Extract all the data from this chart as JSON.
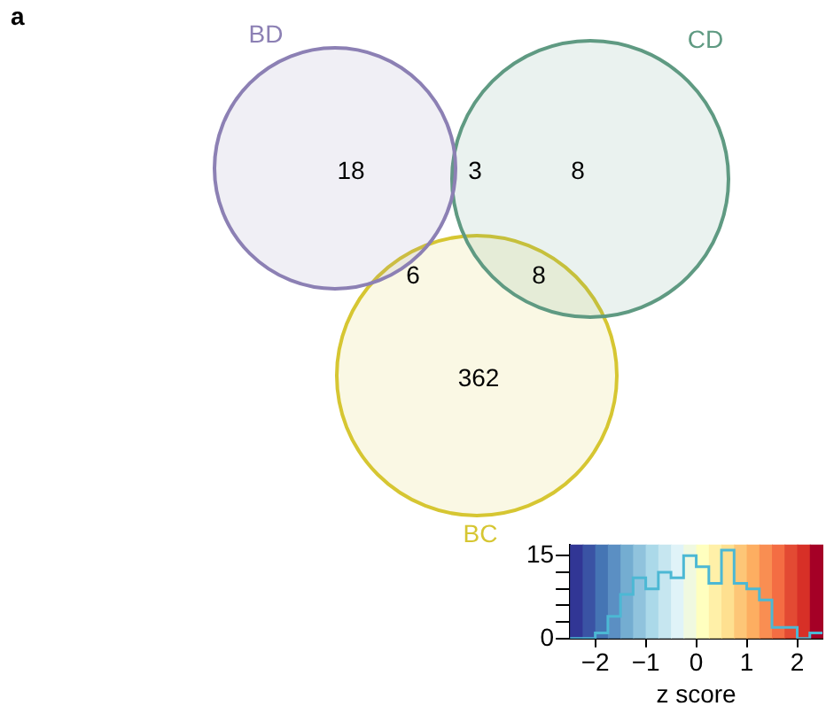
{
  "chart_data": [
    {
      "type": "other",
      "title": "a",
      "series": [
        {
          "name": "BD",
          "color": "#8c80b4"
        },
        {
          "name": "CD",
          "color": "#5f9a82"
        },
        {
          "name": "BC",
          "color": "#d6c632"
        }
      ],
      "annotations": [
        "18",
        "3",
        "8",
        "6",
        "8",
        "362"
      ]
    },
    {
      "type": "histogram",
      "xlabel": "z score",
      "bins": [
        -2.5,
        -2.25,
        -2,
        -1.75,
        -1.5,
        -1.25,
        -1,
        -0.75,
        -0.5,
        -0.25,
        0,
        0.25,
        0.5,
        0.75,
        1,
        1.25,
        1.5,
        1.75,
        2,
        2.25,
        2.5
      ],
      "values": [
        0,
        0,
        1,
        4,
        8,
        11,
        9,
        12,
        11,
        15,
        13,
        10,
        16,
        10,
        9,
        7,
        2,
        2,
        0,
        1
      ],
      "color": "#4cb8d4",
      "xlim": [
        -2.5,
        2.5
      ],
      "xticks": [
        {
          "value": -2,
          "label": "−2"
        },
        {
          "value": -1,
          "label": "−1"
        },
        0,
        1,
        2
      ],
      "ylim": [
        0,
        17
      ],
      "yticks": [
        0,
        {
          "value": 3,
          "label": null
        },
        {
          "value": 6,
          "label": null
        },
        {
          "value": 9,
          "label": null
        },
        {
          "value": 12,
          "label": null
        },
        15
      ],
      "grid": false,
      "bands": [
        {
          "axis": "x",
          "from": -2.5,
          "to": -2.25,
          "color": "#313695"
        },
        {
          "axis": "x",
          "from": -2.25,
          "to": -2,
          "color": "#3a53a4"
        },
        {
          "axis": "x",
          "from": -2,
          "to": -1.75,
          "color": "#4575b4"
        },
        {
          "axis": "x",
          "from": -1.75,
          "to": -1.5,
          "color": "#5b8fc3"
        },
        {
          "axis": "x",
          "from": -1.5,
          "to": -1.25,
          "color": "#74add1"
        },
        {
          "axis": "x",
          "from": -1.25,
          "to": -1,
          "color": "#90c3dd"
        },
        {
          "axis": "x",
          "from": -1,
          "to": -0.75,
          "color": "#abd9e9"
        },
        {
          "axis": "x",
          "from": -0.75,
          "to": -0.5,
          "color": "#c6e6f0"
        },
        {
          "axis": "x",
          "from": -0.5,
          "to": -0.25,
          "color": "#e0f3f8"
        },
        {
          "axis": "x",
          "from": -0.25,
          "to": 0,
          "color": "#f0f9e0"
        },
        {
          "axis": "x",
          "from": 0,
          "to": 0.25,
          "color": "#ffffbf"
        },
        {
          "axis": "x",
          "from": 0.25,
          "to": 0.5,
          "color": "#fff0a8"
        },
        {
          "axis": "x",
          "from": 0.5,
          "to": 0.75,
          "color": "#fee090"
        },
        {
          "axis": "x",
          "from": 0.75,
          "to": 1,
          "color": "#fdc677"
        },
        {
          "axis": "x",
          "from": 1,
          "to": 1.25,
          "color": "#fdae61"
        },
        {
          "axis": "x",
          "from": 1.25,
          "to": 1.5,
          "color": "#f98e52"
        },
        {
          "axis": "x",
          "from": 1.5,
          "to": 1.75,
          "color": "#f46d43"
        },
        {
          "axis": "x",
          "from": 1.75,
          "to": 2,
          "color": "#e34a33"
        },
        {
          "axis": "x",
          "from": 2,
          "to": 2.25,
          "color": "#d73027"
        },
        {
          "axis": "x",
          "from": 2.25,
          "to": 2.5,
          "color": "#a50026"
        }
      ]
    }
  ]
}
